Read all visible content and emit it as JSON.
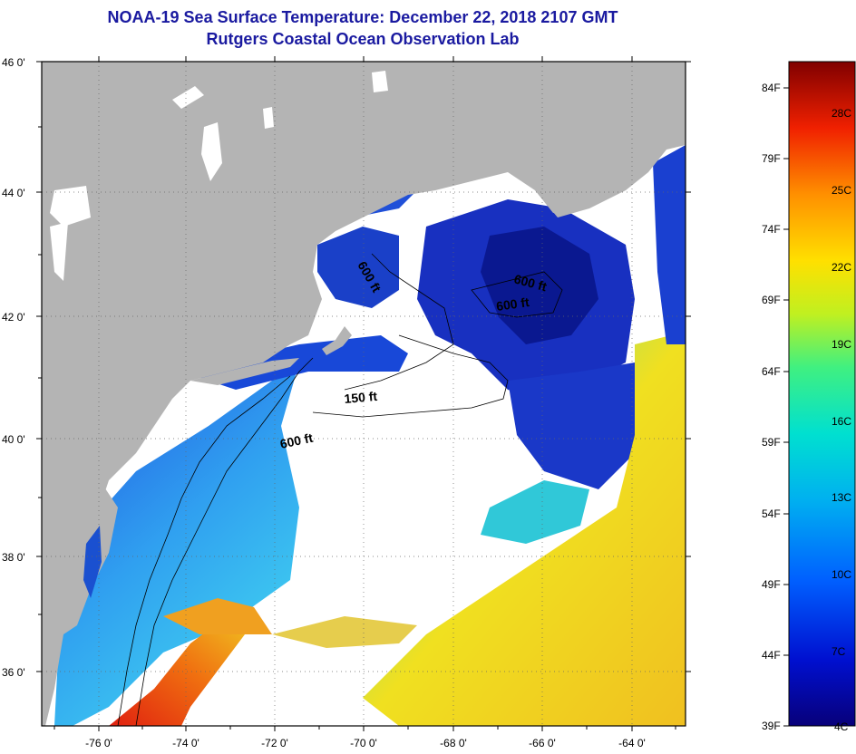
{
  "title": "NOAA-19 Sea Surface Temperature:  December 22, 2018 2107 GMT",
  "subtitle": "Rutgers Coastal Ocean Observation Lab",
  "lat_labels": [
    "46 0'",
    "44 0'",
    "42 0'",
    "40 0'",
    "38 0'",
    "36 0'"
  ],
  "lon_labels": [
    "-76 0'",
    "-74 0'",
    "-72 0'",
    "-70 0'",
    "-68 0'",
    "-66 0'",
    "-64 0'"
  ],
  "depth_labels": [
    "600 ft",
    "600 ft",
    "600 ft",
    "150 ft",
    "600 ft"
  ],
  "colorbar": {
    "f_labels": [
      "84F",
      "79F",
      "74F",
      "69F",
      "64F",
      "59F",
      "54F",
      "49F",
      "44F",
      "39F"
    ],
    "c_labels": [
      "28C",
      "25C",
      "22C",
      "19C",
      "16C",
      "13C",
      "10C",
      "7C",
      "4C"
    ],
    "range_c": [
      4,
      29
    ]
  },
  "colors": {
    "land": "#b4b4b4",
    "cloud": "#ffffff",
    "title": "#1a1aa0",
    "cold": "#0a1a90",
    "cool": "#2060e0",
    "mid": "#20c0e0",
    "warm": "#f0e020",
    "hot": "#e02010"
  }
}
